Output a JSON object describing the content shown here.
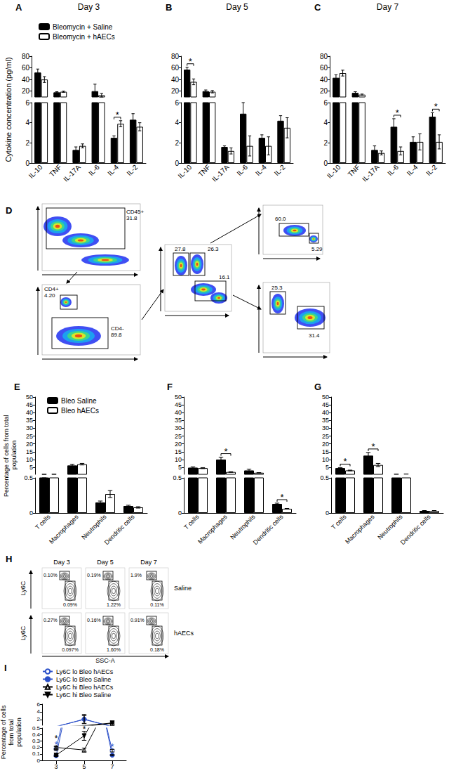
{
  "chart_data": [
    {
      "panel": "A",
      "type": "bar",
      "title": "Day 3",
      "y_label": "Cytokine concentration (pg/ml)",
      "categories": [
        "IL-10",
        "TNF",
        "IL-17A",
        "IL-6",
        "IL-4",
        "IL-2"
      ],
      "series": [
        {
          "name": "Bleomycin + Saline",
          "color": "#000000",
          "values": [
            52,
            18,
            1.3,
            20,
            2.5,
            4.3
          ],
          "errors": [
            6,
            1,
            0.3,
            12,
            0.2,
            0.6
          ]
        },
        {
          "name": "Bleomycin + hAECs",
          "color": "#ffffff",
          "values": [
            40,
            19,
            1.7,
            13,
            3.9,
            3.6
          ],
          "errors": [
            5,
            1,
            0.2,
            3,
            0.3,
            0.4
          ]
        }
      ],
      "ylim": [
        0,
        80
      ],
      "y_break": [
        6,
        10
      ],
      "yticks": [
        0,
        2,
        4,
        6,
        20,
        40,
        60,
        80
      ],
      "grid": false,
      "legend": "top-left",
      "significance": [
        {
          "category": "IL-4",
          "text": "*"
        }
      ]
    },
    {
      "panel": "B",
      "type": "bar",
      "title": "Day 5",
      "categories": [
        "IL-10",
        "TNF",
        "IL-17A",
        "IL-6",
        "IL-4",
        "IL-2"
      ],
      "series": [
        {
          "name": "Bleomycin + Saline",
          "color": "#000000",
          "values": [
            57,
            20,
            1.6,
            4.9,
            2.5,
            4.2
          ],
          "errors": [
            4,
            2,
            0.1,
            1.1,
            0.3,
            0.5
          ]
        },
        {
          "name": "Bleomycin + hAECs",
          "color": "#ffffff",
          "values": [
            36,
            19,
            1.2,
            1.7,
            1.7,
            3.5
          ],
          "errors": [
            5,
            2,
            0.3,
            1.0,
            0.9,
            1.0
          ]
        }
      ],
      "ylim": [
        0,
        80
      ],
      "y_break": [
        6,
        10
      ],
      "yticks": [
        0,
        2,
        4,
        6,
        20,
        40,
        60,
        80
      ],
      "grid": false,
      "significance": [
        {
          "category": "IL-10",
          "text": "*"
        }
      ]
    },
    {
      "panel": "C",
      "type": "bar",
      "title": "Day 7",
      "categories": [
        "IL-10",
        "TNF",
        "IL-17A",
        "IL-6",
        "IL-4",
        "IL-2"
      ],
      "series": [
        {
          "name": "Bleomycin + Saline",
          "color": "#000000",
          "values": [
            43,
            17,
            1.3,
            3.6,
            2.1,
            4.6
          ],
          "errors": [
            5,
            2,
            0.4,
            0.8,
            0.5,
            0.4
          ]
        },
        {
          "name": "Bleomycin + hAECs",
          "color": "#ffffff",
          "values": [
            51,
            14,
            1.0,
            1.2,
            2.1,
            2.1
          ],
          "errors": [
            5,
            1,
            0.2,
            0.4,
            0.8,
            0.7
          ]
        }
      ],
      "ylim": [
        0,
        80
      ],
      "y_break": [
        6,
        10
      ],
      "yticks": [
        0,
        2,
        4,
        6,
        20,
        40,
        60,
        80
      ],
      "grid": false,
      "significance": [
        {
          "category": "IL-6",
          "text": "*"
        },
        {
          "category": "IL-2",
          "text": "*"
        }
      ]
    },
    {
      "panel": "D",
      "type": "flow",
      "plots": [
        {
          "gates": [
            {
              "name": "CD45+",
              "text": "31.8"
            }
          ]
        },
        {
          "gates": [
            {
              "name": "CD4+",
              "text": "4.20"
            },
            {
              "name": "CD4-",
              "text": "89.8"
            }
          ]
        },
        {
          "gates": [
            {
              "text": "27.8"
            },
            {
              "text": "26.3"
            },
            {
              "text": "16.1"
            }
          ]
        },
        {
          "gates": [
            {
              "text": "60.0"
            },
            {
              "text": "5.29"
            }
          ]
        },
        {
          "gates": [
            {
              "text": "25.3"
            },
            {
              "text": "31.4"
            }
          ]
        }
      ]
    },
    {
      "panel": "E",
      "type": "bar",
      "y_label": "Percentage of cells from total population",
      "categories": [
        "T cells",
        "Macrophages",
        "Neutrophils",
        "Dendritic cells"
      ],
      "series": [
        {
          "name": "Bleo Saline",
          "color": "#000000",
          "values": [
            0.52,
            6.2,
            0.15,
            0.1
          ],
          "errors": [
            0.02,
            0.8,
            0.02,
            0.01
          ]
        },
        {
          "name": "Bleo hAECs",
          "color": "#ffffff",
          "values": [
            0.56,
            7.0,
            0.27,
            0.08
          ],
          "errors": [
            0.02,
            0.5,
            0.05,
            0.01
          ]
        }
      ],
      "ylim": [
        0,
        50
      ],
      "y_break": [
        0.5,
        0.5
      ],
      "yticks": [
        0,
        0.5,
        5,
        10,
        15,
        20,
        25,
        30,
        35,
        40,
        45,
        50
      ],
      "grid": false,
      "legend": "top-left"
    },
    {
      "panel": "F",
      "type": "bar",
      "categories": [
        "T cells",
        "Macrophages",
        "Neutrophils",
        "Dendritic cells"
      ],
      "series": [
        {
          "name": "Bleo Saline",
          "color": "#000000",
          "values": [
            4.8,
            10.0,
            3.0,
            0.13
          ],
          "errors": [
            0.5,
            1.5,
            0.8,
            0.01
          ]
        },
        {
          "name": "Bleo hAECs",
          "color": "#ffffff",
          "values": [
            4.5,
            2.0,
            1.5,
            0.06
          ],
          "errors": [
            0.3,
            0.2,
            0.1,
            0.005
          ]
        }
      ],
      "ylim": [
        0,
        50
      ],
      "y_break": [
        0.5,
        0.5
      ],
      "yticks": [
        0,
        0.5,
        5,
        10,
        15,
        20,
        25,
        30,
        35,
        40,
        45,
        50
      ],
      "grid": false,
      "significance": [
        {
          "category": "Macrophages",
          "text": "*"
        },
        {
          "category": "Dendritic cells",
          "text": "*"
        }
      ]
    },
    {
      "panel": "G",
      "type": "bar",
      "categories": [
        "T cells",
        "Macrophages",
        "Neutrophils",
        "Dendritic cells"
      ],
      "series": [
        {
          "name": "Bleo Saline",
          "color": "#000000",
          "values": [
            4.5,
            12.5,
            0.6,
            0.03
          ],
          "errors": [
            0.3,
            2.0,
            0.05,
            0.005
          ]
        },
        {
          "name": "Bleo hAECs",
          "color": "#ffffff",
          "values": [
            3.0,
            6.5,
            0.7,
            0.03
          ],
          "errors": [
            0.2,
            1.0,
            0.05,
            0.005
          ]
        }
      ],
      "ylim": [
        0,
        50
      ],
      "y_break": [
        0.5,
        0.5
      ],
      "yticks": [
        0,
        0.5,
        5,
        10,
        15,
        20,
        25,
        30,
        35,
        40,
        45,
        50
      ],
      "grid": false,
      "significance": [
        {
          "category": "T cells",
          "text": "*"
        },
        {
          "category": "Macrophages",
          "text": "*"
        }
      ]
    },
    {
      "panel": "H",
      "type": "flow",
      "x_label": "SSC-A",
      "y_label": "Ly6C",
      "columns": [
        "Day 3",
        "Day 5",
        "Day 7"
      ],
      "rows": [
        {
          "name": "Saline",
          "gates": [
            [
              "0.10%",
              "0.09%"
            ],
            [
              "0.19%",
              "1.22%"
            ],
            [
              "1.9%",
              "0.11%"
            ]
          ]
        },
        {
          "name": "hAECs",
          "gates": [
            [
              "0.27%",
              "0.097%"
            ],
            [
              "0.16%",
              "1.60%"
            ],
            [
              "0.91%",
              "0.18%"
            ]
          ]
        }
      ]
    },
    {
      "panel": "I",
      "type": "line",
      "y_label": "Percentage of cells from total population",
      "categories": [
        "3",
        "5",
        "7"
      ],
      "series": [
        {
          "name": "Ly6C lo Bleo hAECs",
          "color": "#2a4fc8",
          "marker": "circle-open",
          "values": [
            0.18,
            2.0,
            0.15
          ],
          "errors": [
            0.03,
            1.0,
            0.02
          ]
        },
        {
          "name": "Ly6C lo Bleo Saline",
          "color": "#2a4fc8",
          "marker": "circle",
          "values": [
            0.07,
            2.1,
            0.08
          ],
          "errors": [
            0.01,
            1.2,
            0.01
          ]
        },
        {
          "name": "Ly6C hi Bleo hAECs",
          "color": "#000000",
          "marker": "triangle-open",
          "values": [
            0.2,
            0.16,
            1.0
          ],
          "errors": [
            0.02,
            0.03,
            0.2
          ]
        },
        {
          "name": "Ly6C hi Bleo Saline",
          "color": "#000000",
          "marker": "triangle-down",
          "values": [
            0.08,
            0.38,
            1.1
          ],
          "errors": [
            0.01,
            0.07,
            0.2
          ]
        }
      ],
      "ylim": [
        0,
        6
      ],
      "y_break": [
        0.5,
        0.5
      ],
      "yticks": [
        0,
        0.1,
        0.2,
        0.3,
        0.4,
        0.5,
        2,
        4,
        6
      ],
      "grid": false,
      "legend": "top-left",
      "significance": [
        {
          "category": "3",
          "series": "Ly6C lo Bleo hAECs",
          "text": "*"
        },
        {
          "category": "3",
          "series": "Ly6C hi Bleo hAECs",
          "text": "*"
        },
        {
          "category": "5",
          "series": "Ly6C hi Bleo Saline",
          "text": "*"
        },
        {
          "category": "7",
          "series": "Ly6C lo Bleo hAECs",
          "text": "*"
        }
      ]
    }
  ]
}
